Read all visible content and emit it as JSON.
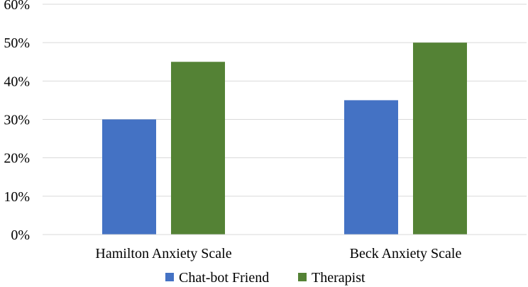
{
  "chart_data": {
    "type": "bar",
    "title": "",
    "xlabel": "",
    "ylabel": "",
    "categories": [
      "Hamilton Anxiety Scale",
      "Beck Anxiety Scale"
    ],
    "series": [
      {
        "name": "Chat-bot Friend",
        "color": "#4472C4",
        "values": [
          30,
          35
        ]
      },
      {
        "name": "Therapist",
        "color": "#548235",
        "values": [
          45,
          50
        ]
      }
    ],
    "ylim": [
      0,
      60
    ],
    "yticks": [
      0,
      10,
      20,
      30,
      40,
      50,
      60
    ],
    "ytick_labels": [
      "0%",
      "10%",
      "20%",
      "30%",
      "40%",
      "50%",
      "60%"
    ],
    "value_format": "percent",
    "grid": true,
    "legend": "bottom"
  }
}
